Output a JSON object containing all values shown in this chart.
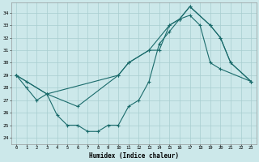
{
  "xlabel": "Humidex (Indice chaleur)",
  "background_color": "#cce8ea",
  "grid_color": "#a8cdd0",
  "line_color": "#1a6b6b",
  "xlim": [
    -0.5,
    23.5
  ],
  "ylim": [
    23.5,
    34.8
  ],
  "xticks": [
    0,
    1,
    2,
    3,
    4,
    5,
    6,
    7,
    8,
    9,
    10,
    11,
    12,
    13,
    14,
    15,
    16,
    17,
    18,
    19,
    20,
    21,
    22,
    23
  ],
  "yticks": [
    24,
    25,
    26,
    27,
    28,
    29,
    30,
    31,
    32,
    33,
    34
  ],
  "series": [
    {
      "x": [
        0,
        1,
        2,
        3,
        4,
        5,
        6,
        7,
        8,
        9,
        10,
        11,
        12,
        13,
        14,
        15,
        16,
        17,
        18,
        19,
        20,
        23
      ],
      "y": [
        29,
        28,
        27,
        27.5,
        25.8,
        25,
        25,
        24.5,
        24.5,
        25,
        25,
        26.5,
        27,
        28.5,
        31.5,
        32.5,
        33.5,
        33.8,
        33,
        30,
        29.5,
        28.5
      ]
    },
    {
      "x": [
        0,
        3,
        10,
        11,
        13,
        15,
        16,
        17,
        19,
        20,
        21,
        23
      ],
      "y": [
        29,
        27.5,
        29,
        30,
        31,
        33,
        33.5,
        34.5,
        33,
        32,
        30,
        28.5
      ]
    },
    {
      "x": [
        0,
        1,
        3,
        6,
        10,
        11,
        13,
        14,
        15,
        16,
        17,
        19,
        20,
        21,
        23
      ],
      "y": [
        29,
        28.5,
        27.5,
        26.5,
        29,
        30,
        31,
        31,
        33,
        33.5,
        34.5,
        33,
        32,
        30,
        28.5
      ]
    }
  ]
}
